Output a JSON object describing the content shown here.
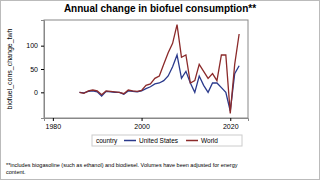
{
  "chart_data": {
    "type": "line",
    "title": "Annual change in biofuel consumption**",
    "y_label": "biofuel_cons_change_twh",
    "legend_title": "country",
    "footnote": [
      "**includes biogasoline (such as ethanol) and biodiesel. Volumes have been adjusted for energy",
      "content."
    ],
    "x": [
      1986,
      1987,
      1988,
      1989,
      1990,
      1991,
      1992,
      1993,
      1994,
      1995,
      1996,
      1997,
      1998,
      1999,
      2000,
      2001,
      2002,
      2003,
      2004,
      2005,
      2006,
      2007,
      2008,
      2009,
      2010,
      2011,
      2012,
      2013,
      2014,
      2015,
      2016,
      2017,
      2018,
      2019,
      2020,
      2021,
      2022
    ],
    "series": [
      {
        "name": "United States",
        "color": "#2b3a8c",
        "values": [
          0,
          -1,
          2,
          3,
          1,
          -8,
          2,
          1,
          0,
          0,
          -4,
          3,
          2,
          1,
          3,
          8,
          12,
          18,
          20,
          25,
          35,
          55,
          80,
          30,
          45,
          20,
          0,
          35,
          15,
          0,
          20,
          20,
          10,
          0,
          -40,
          40,
          57
        ]
      },
      {
        "name": "World",
        "color": "#8b2a2a",
        "values": [
          0,
          -2,
          3,
          5,
          3,
          -5,
          3,
          2,
          1,
          0,
          -3,
          5,
          3,
          2,
          4,
          15,
          18,
          30,
          35,
          60,
          85,
          105,
          145,
          75,
          80,
          20,
          25,
          60,
          45,
          30,
          40,
          25,
          80,
          80,
          -45,
          60,
          125
        ]
      }
    ],
    "xlim": [
      1978,
      2024
    ],
    "xticks": [
      1980,
      2000,
      2020
    ],
    "ylim": [
      -55,
      155
    ],
    "yticks": [
      0,
      50,
      100
    ],
    "grid": false,
    "legend": "bottom"
  }
}
